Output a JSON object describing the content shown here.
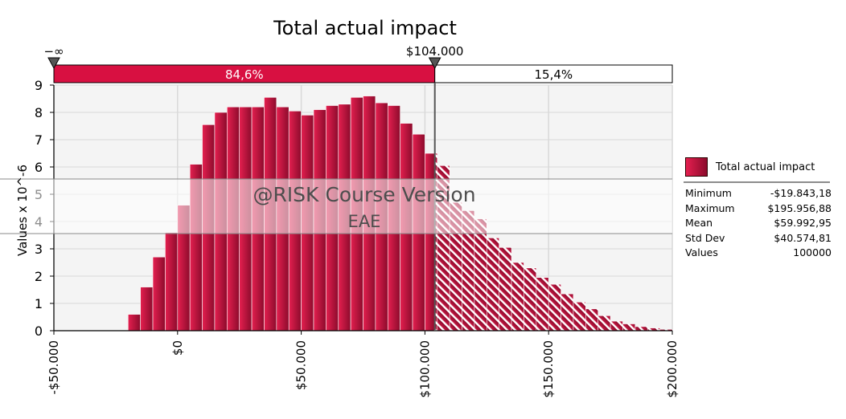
{
  "chart_data": {
    "type": "bar",
    "title": "Total actual impact",
    "ylabel": "Values x 10^-6",
    "xlabel": "",
    "xlim": [
      -50000,
      200000
    ],
    "ylim": [
      0,
      9
    ],
    "x_tick_labels": [
      "-$50.000",
      "$0",
      "$50.000",
      "$100.000",
      "$150.000",
      "$200.000"
    ],
    "x_tick_values": [
      -50000,
      0,
      50000,
      100000,
      150000,
      200000
    ],
    "y_tick_labels": [
      "0",
      "1",
      "2",
      "3",
      "4",
      "5",
      "6",
      "7",
      "8",
      "9"
    ],
    "y_tick_values": [
      0,
      1,
      2,
      3,
      4,
      5,
      6,
      7,
      8,
      9
    ],
    "grid": true,
    "legend_position": "right",
    "bin_width": 5000,
    "bin_starts": [
      -20000,
      -15000,
      -10000,
      -5000,
      0,
      5000,
      10000,
      15000,
      20000,
      25000,
      30000,
      35000,
      40000,
      45000,
      50000,
      55000,
      60000,
      65000,
      70000,
      75000,
      80000,
      85000,
      90000,
      95000,
      100000,
      105000,
      110000,
      115000,
      120000,
      125000,
      130000,
      135000,
      140000,
      145000,
      150000,
      155000,
      160000,
      165000,
      170000,
      175000,
      180000,
      185000,
      190000,
      195000
    ],
    "values": [
      0.6,
      1.6,
      2.7,
      3.6,
      4.6,
      6.1,
      7.55,
      8.0,
      8.2,
      8.2,
      8.2,
      8.55,
      8.2,
      8.05,
      7.9,
      8.1,
      8.25,
      8.3,
      8.55,
      8.6,
      8.35,
      8.25,
      7.6,
      7.2,
      6.5,
      6.05,
      4.7,
      4.4,
      4.1,
      3.4,
      3.05,
      2.5,
      2.3,
      1.95,
      1.7,
      1.35,
      1.05,
      0.8,
      0.55,
      0.35,
      0.25,
      0.15,
      0.1,
      0.05
    ],
    "left_delimiter": {
      "value_label": "−∞",
      "percent": "84,6%"
    },
    "right_delimiter": {
      "value_label": "$104.000",
      "value": 104000,
      "percent": "15,4%"
    },
    "statistics": [
      {
        "label": "Minimum",
        "value": "-$19.843,18"
      },
      {
        "label": "Maximum",
        "value": "$195.956,88"
      },
      {
        "label": "Mean",
        "value": "$59.992,95"
      },
      {
        "label": "Std Dev",
        "value": "$40.574,81"
      },
      {
        "label": "Values",
        "value": "100000"
      }
    ],
    "series": [
      {
        "name": "Total actual impact"
      }
    ]
  },
  "watermark": {
    "line1": "@RISK Course Version",
    "line2": "EAE"
  },
  "colors": {
    "bar_left_light": "#e41f4f",
    "bar_right_dark": "#8c0b2c",
    "bar_top": "#c2103e",
    "bar_edge": "#ffffff",
    "delimiter_fill": "#d81041",
    "plot_bg": "#f4f4f4",
    "grid": "#d9d9d9",
    "hatch_stripe": "#ffffff",
    "watermark_band": "rgba(255,255,255,0.55)",
    "watermark_text": "#4d4d4d",
    "legend_swatch": "#b20c3a"
  }
}
